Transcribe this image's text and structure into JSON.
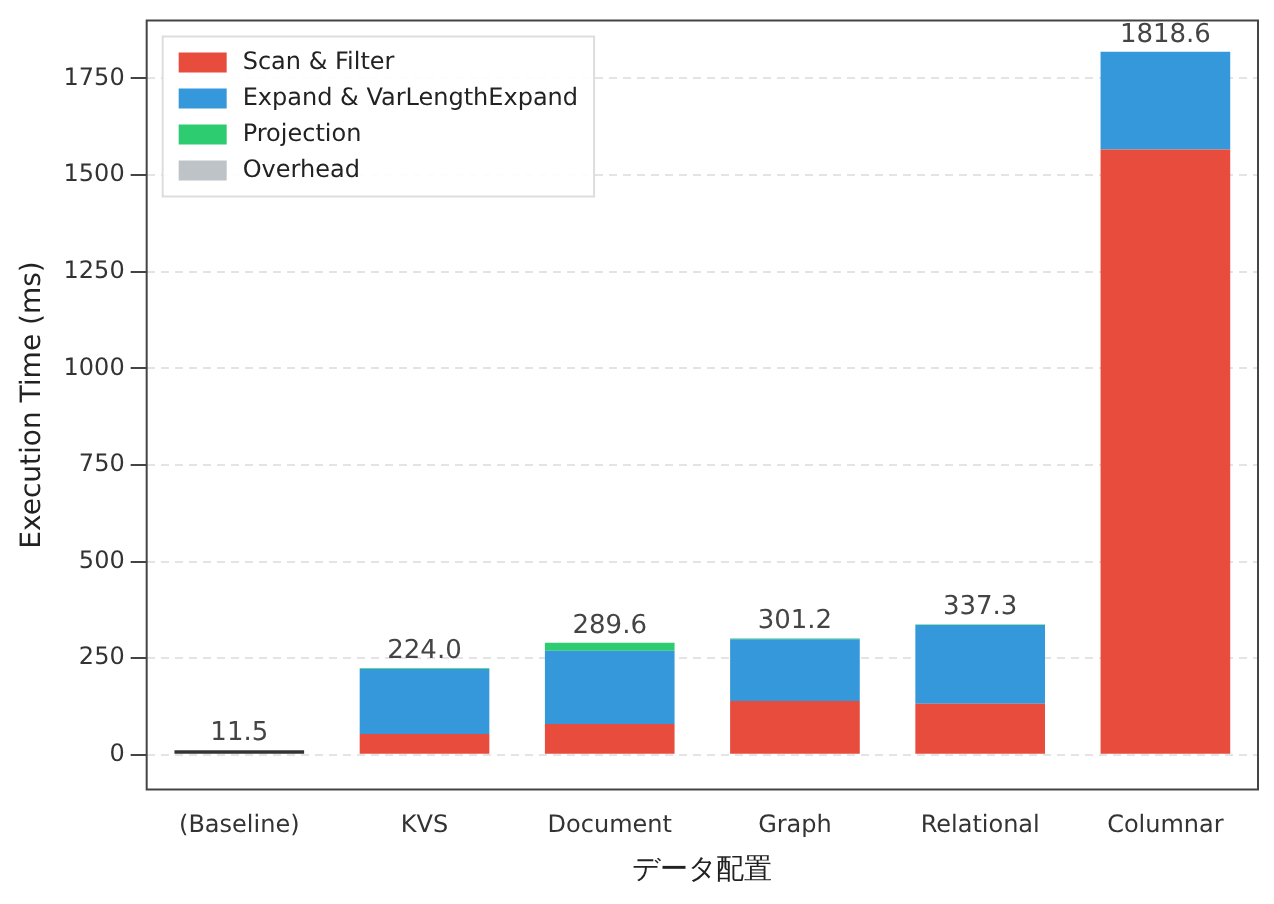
{
  "chart_data": {
    "type": "bar",
    "stacked": true,
    "xlabel": "データ配置",
    "ylabel": "Execution Time (ms)",
    "categories": [
      "(Baseline)",
      "KVS",
      "Document",
      "Graph",
      "Relational",
      "Columnar"
    ],
    "series": [
      {
        "color": "#333333",
        "values": [
          11.5,
          0,
          0,
          0,
          0,
          0
        ]
      },
      {
        "name": "Scan & Filter",
        "color": "#e74c3c",
        "values": [
          0,
          54,
          80,
          139,
          132,
          1566
        ]
      },
      {
        "name": "Expand & VarLengthExpand",
        "color": "#3498db",
        "values": [
          0,
          168,
          189,
          160,
          204,
          252.6
        ]
      },
      {
        "name": "Projection",
        "color": "#2ecc71",
        "values": [
          0,
          2,
          20.6,
          2.2,
          1.3,
          0
        ]
      },
      {
        "name": "Overhead",
        "color": "#bdc3c7",
        "values": [
          0,
          0,
          0,
          0,
          0,
          0
        ]
      }
    ],
    "totals": [
      "11.5",
      "224.0",
      "289.6",
      "301.2",
      "337.3",
      "1818.6"
    ],
    "ylim": [
      -90,
      1900
    ],
    "yticks": [
      0,
      250,
      500,
      750,
      1000,
      1250,
      1500,
      1750
    ],
    "grid": "y",
    "legend": "top left"
  }
}
